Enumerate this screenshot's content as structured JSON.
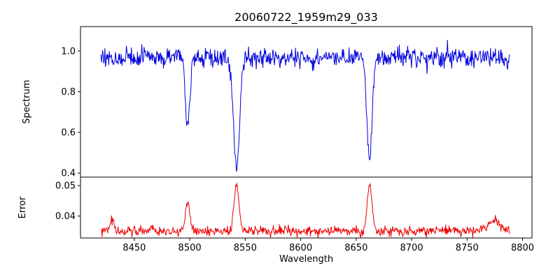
{
  "chart_data": {
    "type": "line",
    "title": "20060722_1959m29_033",
    "xlabel": "Wavelength",
    "xlim": [
      8401.5,
      8808.5
    ],
    "x_range": [
      8420,
      8788
    ],
    "x_ticks": [
      8450,
      8500,
      8550,
      8600,
      8650,
      8700,
      8750,
      8800
    ],
    "n_points": 740,
    "seed": 20060722,
    "background_color": "#ffffff",
    "axis_color": "#000000",
    "panels": [
      {
        "name": "spectrum",
        "ylabel": "Spectrum",
        "color": "#0000dd",
        "ylim": [
          0.38,
          1.12
        ],
        "yticks": [
          {
            "value": 0.4,
            "label": "0.4"
          },
          {
            "value": 0.6,
            "label": "0.6"
          },
          {
            "value": 0.8,
            "label": "0.8"
          },
          {
            "value": 1.0,
            "label": "1.0"
          }
        ],
        "continuum": 0.968,
        "noise_sigma": 0.024,
        "absorption_lines": [
          {
            "center": 8498.0,
            "depth": 0.345,
            "sigma": 2.0
          },
          {
            "center": 8542.1,
            "depth": 0.55,
            "sigma": 2.8
          },
          {
            "center": 8662.1,
            "depth": 0.5,
            "sigma": 2.4
          }
        ]
      },
      {
        "name": "error",
        "ylabel": "Error",
        "color": "#ee0000",
        "ylim": [
          0.0328,
          0.0528
        ],
        "yticks": [
          {
            "value": 0.04,
            "label": "0.04"
          },
          {
            "value": 0.05,
            "label": "0.05"
          }
        ],
        "baseline": 0.035,
        "noise_sigma": 0.0008,
        "peaks": [
          {
            "center": 8430.0,
            "height": 0.004,
            "sigma": 1.8
          },
          {
            "center": 8466.0,
            "height": 0.002,
            "sigma": 1.5
          },
          {
            "center": 8498.0,
            "height": 0.0095,
            "sigma": 2.0
          },
          {
            "center": 8542.1,
            "height": 0.0162,
            "sigma": 2.2
          },
          {
            "center": 8662.1,
            "height": 0.015,
            "sigma": 2.2
          },
          {
            "center": 8775.0,
            "height": 0.0035,
            "sigma": 5.0
          }
        ]
      }
    ]
  }
}
